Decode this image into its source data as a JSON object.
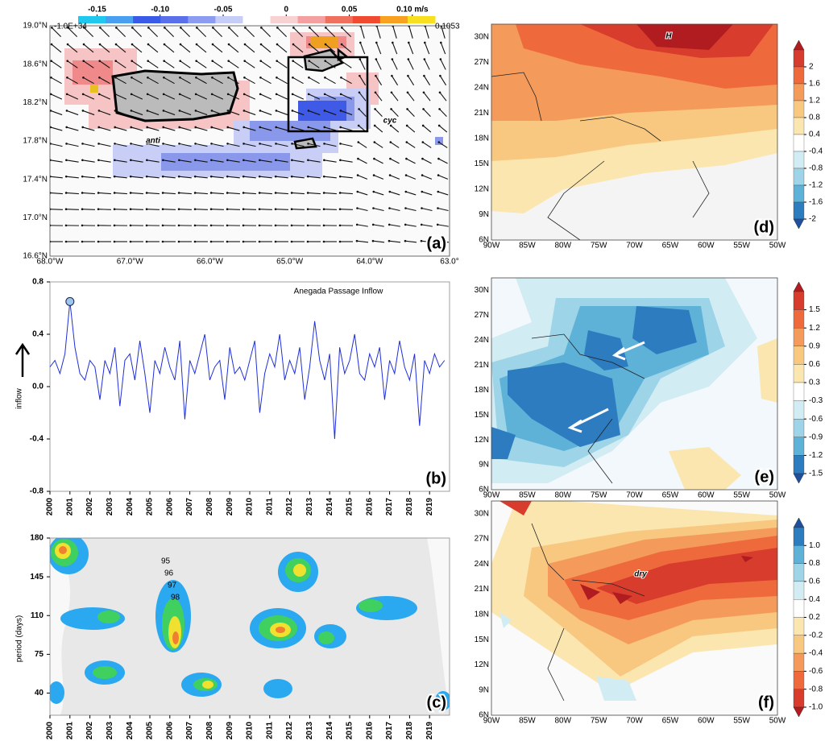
{
  "chart_data": [
    {
      "type": "map",
      "panel_label": "(a)",
      "lat_labels": [
        "19.0°N",
        "18.6°N",
        "18.2°N",
        "17.8°N",
        "17.4°N",
        "17.0°N",
        "16.6°N"
      ],
      "lon_labels": [
        "68.0°W",
        "67.0°W",
        "66.0°W",
        "65.0°W",
        "64.0°W",
        "63.0°"
      ],
      "annotations": [
        "anti",
        "cyc"
      ],
      "colorbar": {
        "orientation": "horizontal",
        "lim": [
          -0.165,
          0.118
        ],
        "ticks": [
          -0.15,
          {
            "value": -0.1,
            "label": "-0.10"
          },
          -0.05,
          0,
          0.05,
          {
            "value": 0.1,
            "label": "0.10 m/s"
          }
        ],
        "range_labels": [
          "-1.0E+34",
          "0.1053"
        ],
        "colors": [
          "#20c8f0",
          "#4aa0f0",
          "#3a5ae8",
          "#5a70ea",
          "#8c9cf0",
          "#c6cef8",
          "#ffffff",
          "#f8d2d2",
          "#f4a0a0",
          "#f07060",
          "#f04a30",
          "#f8a020",
          "#f8e020"
        ]
      }
    },
    {
      "type": "line",
      "panel_label": "(b)",
      "title": "Anegada Passage Inflow",
      "ylabel": "inflow",
      "ylim": [
        -0.8,
        0.8
      ],
      "yticks": [
        0.8,
        0.4,
        {
          "value": 0,
          "label": "0.0"
        },
        -0.4,
        -0.8
      ],
      "xlim": [
        2000,
        2020
      ],
      "xticks": [
        2000,
        2001,
        2002,
        2003,
        2004,
        2005,
        2006,
        2007,
        2008,
        2009,
        2010,
        2011,
        2012,
        2013,
        2014,
        2015,
        2016,
        2017,
        2018,
        2019
      ],
      "x": [
        2000,
        2000.25,
        2000.5,
        2000.75,
        2001,
        2001.25,
        2001.5,
        2001.75,
        2002,
        2002.25,
        2002.5,
        2002.75,
        2003,
        2003.25,
        2003.5,
        2003.75,
        2004,
        2004.25,
        2004.5,
        2004.75,
        2005,
        2005.25,
        2005.5,
        2005.75,
        2006,
        2006.25,
        2006.5,
        2006.75,
        2007,
        2007.25,
        2007.5,
        2007.75,
        2008,
        2008.25,
        2008.5,
        2008.75,
        2009,
        2009.25,
        2009.5,
        2009.75,
        2010,
        2010.25,
        2010.5,
        2010.75,
        2011,
        2011.25,
        2011.5,
        2011.75,
        2012,
        2012.25,
        2012.5,
        2012.75,
        2013,
        2013.25,
        2013.5,
        2013.75,
        2014,
        2014.25,
        2014.5,
        2014.75,
        2015,
        2015.25,
        2015.5,
        2015.75,
        2016,
        2016.25,
        2016.5,
        2016.75,
        2017,
        2017.25,
        2017.5,
        2017.75,
        2018,
        2018.25,
        2018.5,
        2018.75,
        2019,
        2019.25,
        2019.5,
        2019.75
      ],
      "series": [
        {
          "color": "#1f2fd8",
          "values": [
            0.15,
            0.2,
            0.1,
            0.25,
            0.65,
            0.3,
            0.1,
            0.05,
            0.2,
            0.15,
            -0.1,
            0.2,
            0.1,
            0.3,
            -0.15,
            0.2,
            0.25,
            0.05,
            0.35,
            0.1,
            -0.2,
            0.2,
            0.1,
            0.3,
            0.15,
            0.05,
            0.35,
            -0.25,
            0.2,
            0.1,
            0.25,
            0.4,
            0.05,
            0.15,
            0.2,
            -0.1,
            0.3,
            0.1,
            0.15,
            0.05,
            0.2,
            0.35,
            -0.2,
            0.1,
            0.25,
            0.15,
            0.4,
            0.05,
            0.2,
            0.1,
            0.3,
            -0.1,
            0.15,
            0.5,
            0.2,
            0.05,
            0.25,
            -0.4,
            0.3,
            0.1,
            0.2,
            0.4,
            0.1,
            0.05,
            0.25,
            0.15,
            0.3,
            -0.1,
            0.2,
            0.1,
            0.35,
            0.15,
            0.05,
            0.25,
            -0.3,
            0.2,
            0.1,
            0.25,
            0.15,
            0.2
          ]
        }
      ]
    },
    {
      "type": "contour",
      "panel_label": "(c)",
      "ylabel": "period (days)",
      "ylim": [
        20,
        180
      ],
      "yticks": [
        180,
        145,
        110,
        75,
        40
      ],
      "xlim": [
        2000,
        2020
      ],
      "xticks": [
        2000,
        2001,
        2002,
        2003,
        2004,
        2005,
        2006,
        2007,
        2008,
        2009,
        2010,
        2011,
        2012,
        2013,
        2014,
        2015,
        2016,
        2017,
        2018,
        2019
      ],
      "annotations": [
        "95",
        "96",
        "97",
        "98"
      ]
    },
    {
      "type": "map",
      "panel_label": "(d)",
      "lat_labels": [
        "30N",
        "27N",
        "24N",
        "21N",
        "18N",
        "15N",
        "12N",
        "9N",
        "6N"
      ],
      "lon_labels": [
        "90W",
        "85W",
        "80W",
        "75W",
        "70W",
        "65W",
        "60W",
        "55W",
        "50W"
      ],
      "annotations": [
        "H"
      ],
      "colorbar": {
        "orientation": "vertical",
        "ticks": [
          2,
          1.6,
          1.2,
          0.8,
          0.4,
          -0.4,
          -0.8,
          -1.2,
          -1.6,
          -2
        ],
        "colors": [
          "#b01c20",
          "#d83c2c",
          "#ee6a3c",
          "#f49a5a",
          "#f8c880",
          "#fbe6b0",
          "#ffffff",
          "#d2ecf4",
          "#9ed4e8",
          "#5eb2d8",
          "#2e7cc0",
          "#1e4fa0"
        ]
      }
    },
    {
      "type": "map",
      "panel_label": "(e)",
      "lat_labels": [
        "30N",
        "27N",
        "24N",
        "21N",
        "18N",
        "15N",
        "12N",
        "9N",
        "6N"
      ],
      "lon_labels": [
        "90W",
        "85W",
        "80W",
        "75W",
        "70W",
        "65W",
        "60W",
        "55W",
        "50W"
      ],
      "annotations": [],
      "colorbar": {
        "orientation": "vertical",
        "ticks": [
          1.5,
          1.2,
          0.9,
          0.6,
          0.3,
          -0.3,
          -0.6,
          -0.9,
          -1.2,
          -1.5
        ],
        "colors": [
          "#b01c20",
          "#d83c2c",
          "#ee6a3c",
          "#f49a5a",
          "#f8c880",
          "#fbe6b0",
          "#ffffff",
          "#d2ecf4",
          "#9ed4e8",
          "#5eb2d8",
          "#2e7cc0",
          "#1e4fa0"
        ]
      }
    },
    {
      "type": "map",
      "panel_label": "(f)",
      "lat_labels": [
        "30N",
        "27N",
        "24N",
        "21N",
        "18N",
        "15N",
        "12N",
        "9N",
        "6N"
      ],
      "lon_labels": [
        "90W",
        "85W",
        "80W",
        "75W",
        "70W",
        "65W",
        "60W",
        "55W",
        "50W"
      ],
      "annotations": [
        "dry"
      ],
      "colorbar": {
        "orientation": "vertical",
        "ticks": [
          {
            "value": 1,
            "label": "1.0"
          },
          0.8,
          0.6,
          0.4,
          0.2,
          -0.2,
          -0.4,
          -0.6,
          -0.8,
          {
            "value": -1,
            "label": "-1.0"
          }
        ],
        "colors": [
          "#1e4fa0",
          "#2e7cc0",
          "#5eb2d8",
          "#9ed4e8",
          "#d2ecf4",
          "#ffffff",
          "#fbe6b0",
          "#f8c880",
          "#f49a5a",
          "#ee6a3c",
          "#d83c2c",
          "#b01c20"
        ]
      }
    }
  ]
}
